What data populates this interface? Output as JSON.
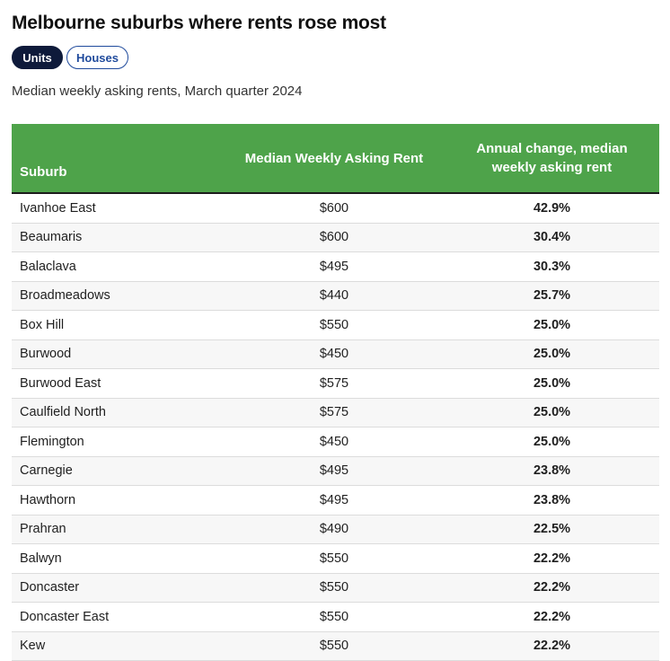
{
  "title": "Melbourne suburbs where rents rose most",
  "toggles": {
    "units": "Units",
    "houses": "Houses",
    "selected": "Units"
  },
  "subtitle": "Median weekly asking rents, March quarter 2024",
  "table": {
    "headers": {
      "suburb": "Suburb",
      "rent": "Median Weekly Asking Rent",
      "change": "Annual change, median weekly asking rent"
    },
    "rows": [
      {
        "suburb": "Ivanhoe East",
        "rent": "$600",
        "change": "42.9%"
      },
      {
        "suburb": "Beaumaris",
        "rent": "$600",
        "change": "30.4%"
      },
      {
        "suburb": "Balaclava",
        "rent": "$495",
        "change": "30.3%"
      },
      {
        "suburb": "Broadmeadows",
        "rent": "$440",
        "change": "25.7%"
      },
      {
        "suburb": "Box Hill",
        "rent": "$550",
        "change": "25.0%"
      },
      {
        "suburb": "Burwood",
        "rent": "$450",
        "change": "25.0%"
      },
      {
        "suburb": "Burwood East",
        "rent": "$575",
        "change": "25.0%"
      },
      {
        "suburb": "Caulfield North",
        "rent": "$575",
        "change": "25.0%"
      },
      {
        "suburb": "Flemington",
        "rent": "$450",
        "change": "25.0%"
      },
      {
        "suburb": "Carnegie",
        "rent": "$495",
        "change": "23.8%"
      },
      {
        "suburb": "Hawthorn",
        "rent": "$495",
        "change": "23.8%"
      },
      {
        "suburb": "Prahran",
        "rent": "$490",
        "change": "22.5%"
      },
      {
        "suburb": "Balwyn",
        "rent": "$550",
        "change": "22.2%"
      },
      {
        "suburb": "Doncaster",
        "rent": "$550",
        "change": "22.2%"
      },
      {
        "suburb": "Doncaster East",
        "rent": "$550",
        "change": "22.2%"
      },
      {
        "suburb": "Kew",
        "rent": "$550",
        "change": "22.2%"
      }
    ]
  },
  "colors": {
    "header_green": "#4ea34a",
    "active_pill": "#0e1a3a",
    "inactive_pill_border": "#1f4a9c"
  }
}
